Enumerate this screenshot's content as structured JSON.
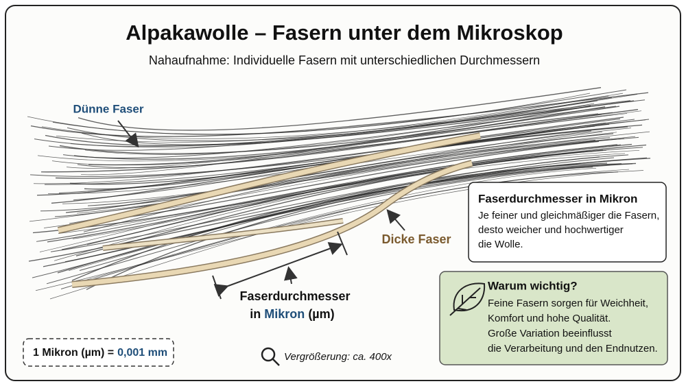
{
  "header": {
    "title": "Alpakawolle – Fasern unter dem Mikroskop",
    "subtitle": "Nahaufnahme: Individuelle Fasern mit unterschiedlichen Durchmessern"
  },
  "labels": {
    "thin": "Dünne Faser",
    "thick": "Dicke Faser"
  },
  "measure": {
    "line1": "Faserdurchmesser",
    "prefix": "in",
    "unit_word": "Mikron",
    "unit": "(µm)"
  },
  "info_box": {
    "title": "Faserdurchmesser in Mikron",
    "lines": [
      "Je feiner und gleichmäßiger die Fasern,",
      "desto weicher und hochwertiger",
      "die Wolle."
    ]
  },
  "why_box": {
    "title": "Warum wichtig?",
    "lines": [
      "Feine Fasern sorgen für Weichheit,",
      "Komfort und hohe Qualität.",
      "Große Variation beeinflusst",
      "die Verarbeitung und den Endnutzen."
    ]
  },
  "scale": {
    "left": "1 Mikron (µm) =",
    "right": "0,001 mm"
  },
  "magnification": "Vergrößerung: ca. 400x"
}
